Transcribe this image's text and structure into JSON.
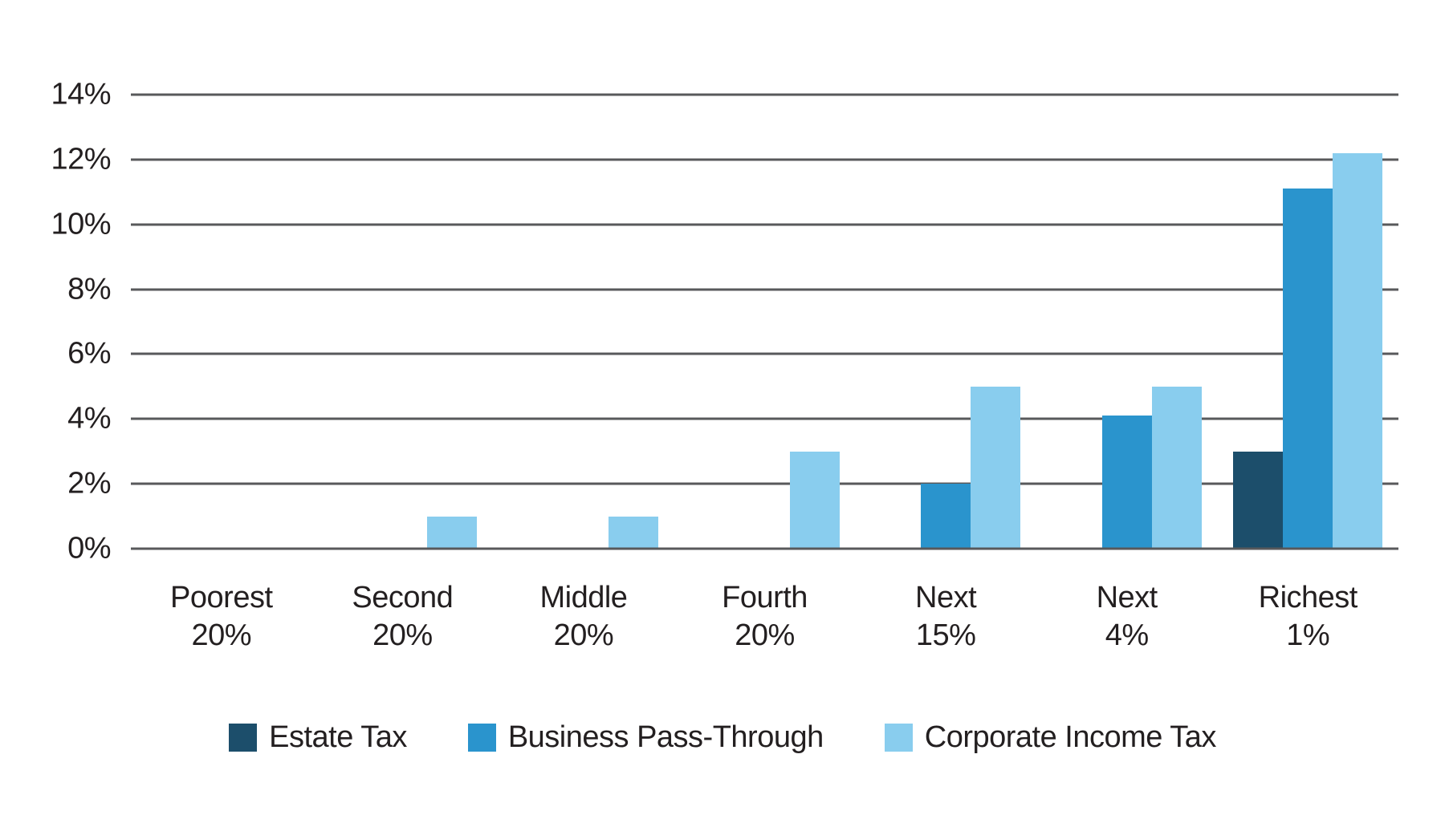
{
  "chart_data": {
    "type": "bar",
    "title": "",
    "categories": [
      "Poorest\n20%",
      "Second\n20%",
      "Middle\n20%",
      "Fourth\n20%",
      "Next\n15%",
      "Next\n4%",
      "Richest\n1%"
    ],
    "series": [
      {
        "name": "Estate Tax",
        "color": "#1c4e6b",
        "values": [
          0,
          0,
          0,
          0,
          0,
          0,
          3.0
        ]
      },
      {
        "name": "Business Pass-Through",
        "color": "#2a94cd",
        "values": [
          0,
          0,
          0,
          0,
          2.0,
          4.1,
          11.1
        ]
      },
      {
        "name": "Corporate Income Tax",
        "color": "#89cdee",
        "values": [
          0,
          1.0,
          1.0,
          3.0,
          5.0,
          5.0,
          12.2
        ]
      }
    ],
    "y_ticks": [
      "14%",
      "12%",
      "10%",
      "8%",
      "6%",
      "4%",
      "2%",
      "0%"
    ],
    "ylim": [
      0,
      14
    ],
    "xlabel": "",
    "ylabel": "",
    "grid": true,
    "legend_position": "bottom"
  },
  "colors": {
    "background": "#ffffff",
    "gridline": "#58595b",
    "text": "#231f20",
    "estate_tax": "#1c4e6b",
    "business_pass_through": "#2a94cd",
    "corporate_income_tax": "#89cdee"
  }
}
